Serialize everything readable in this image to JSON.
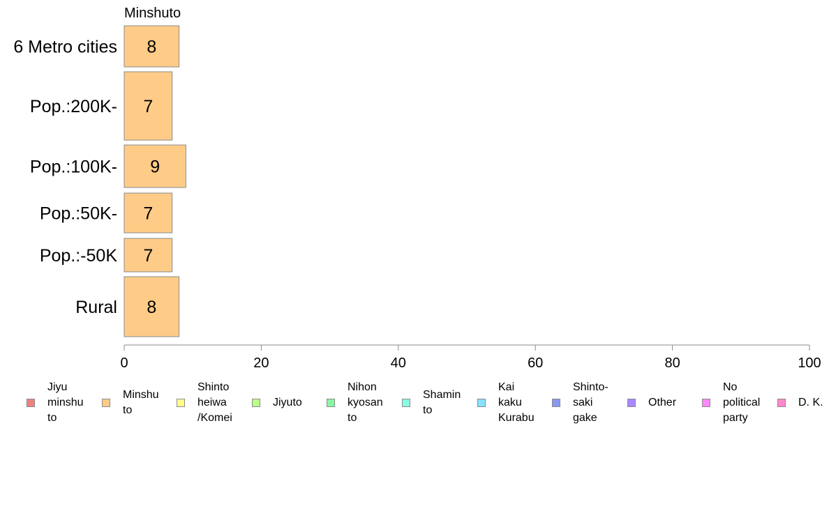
{
  "chart_data": {
    "type": "bar",
    "orientation": "horizontal",
    "title": "Minshuto",
    "categories": [
      "6 Metro cities",
      "Pop.:200K-",
      "Pop.:100K-",
      "Pop.:50K-",
      "Pop.:-50K",
      "Rural"
    ],
    "series": [
      {
        "name": "Minshu\nto",
        "color": "#FFCC88",
        "values": [
          8,
          7,
          9,
          7,
          7,
          8
        ]
      }
    ],
    "data_labels": [
      "8",
      "7",
      "9",
      "7",
      "7",
      "8"
    ],
    "xlim": [
      0,
      100
    ],
    "xticks": [
      "0",
      "20",
      "40",
      "60",
      "80",
      "100"
    ],
    "grid": false,
    "legend_position": "bottom"
  },
  "legend": [
    {
      "label": "Jiyu\nminshu\nto",
      "color": "#F08080"
    },
    {
      "label": "Minshu\nto",
      "color": "#FFCC88"
    },
    {
      "label": "Shinto\nheiwa\n/Komei",
      "color": "#FFFF88"
    },
    {
      "label": "Jiyuto",
      "color": "#BBFF88"
    },
    {
      "label": "Nihon\nkyosan\nto",
      "color": "#88F8A0"
    },
    {
      "label": "Shamin\nto",
      "color": "#88FFE0"
    },
    {
      "label": "Kai\nkaku\nKurabu",
      "color": "#88E0FF"
    },
    {
      "label": "Shinto-\nsaki\ngake",
      "color": "#8899F0"
    },
    {
      "label": "Other",
      "color": "#AA88FF"
    },
    {
      "label": "No\npolitical\nparty",
      "color": "#FF88FF"
    },
    {
      "label": "D. K.",
      "color": "#FF88CC"
    }
  ]
}
